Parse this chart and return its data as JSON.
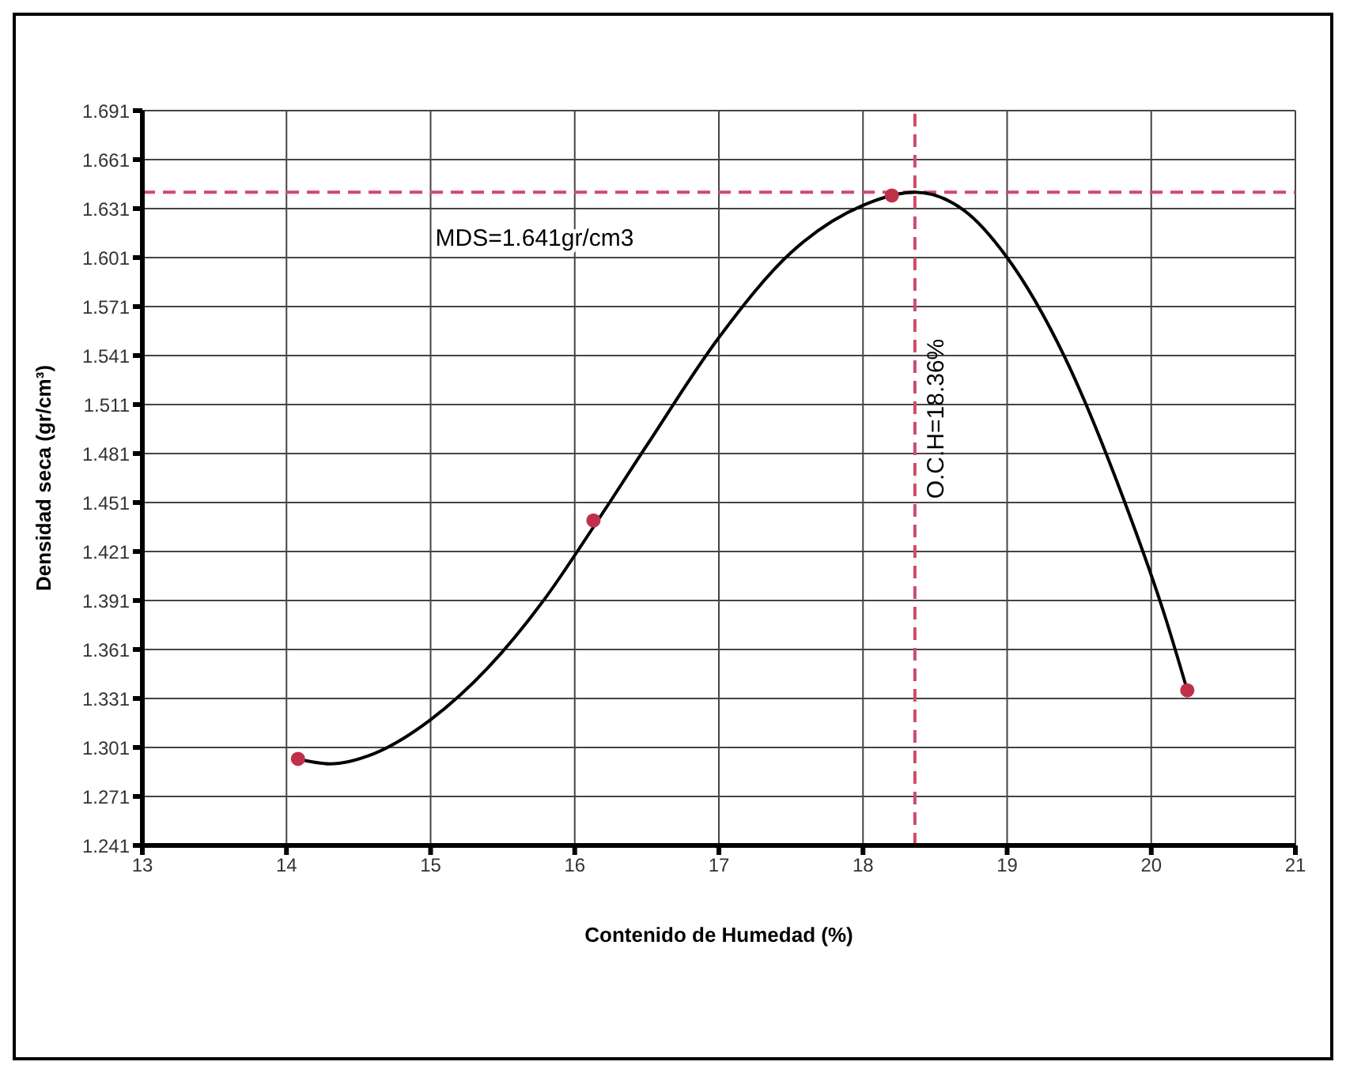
{
  "chart_data": {
    "type": "scatter",
    "xlabel": "Contenido  de Humedad (%)",
    "ylabel": "Densidad seca (gr/cm³)",
    "xlim": [
      13,
      21
    ],
    "xticks": [
      13,
      14,
      15,
      16,
      17,
      18,
      19,
      20,
      21
    ],
    "ylim": [
      1.241,
      1.691
    ],
    "yticks": [
      1.241,
      1.271,
      1.301,
      1.331,
      1.361,
      1.391,
      1.421,
      1.451,
      1.481,
      1.511,
      1.541,
      1.571,
      1.601,
      1.631,
      1.661,
      1.691
    ],
    "grid": true,
    "series": [
      {
        "type": "line",
        "color": "#000000",
        "marker": "none",
        "line_style": "solid",
        "x": [
          14.08,
          14.3,
          14.6,
          15.0,
          15.4,
          15.8,
          16.13,
          16.5,
          17.0,
          17.5,
          18.0,
          18.36,
          18.7,
          19.0,
          19.4,
          19.8,
          20.1,
          20.25
        ],
        "values": [
          1.294,
          1.291,
          1.297,
          1.318,
          1.35,
          1.393,
          1.436,
          1.486,
          1.552,
          1.604,
          1.633,
          1.641,
          1.63,
          1.601,
          1.54,
          1.455,
          1.38,
          1.336
        ]
      },
      {
        "color": "#c0304a",
        "marker": "circle",
        "x": [
          14.08,
          16.13,
          18.2,
          20.25
        ],
        "values": [
          1.294,
          1.44,
          1.639,
          1.336
        ]
      }
    ],
    "ref_lines": [
      {
        "axis": "y",
        "value": 1.641,
        "label": "MDS=1.641gr/cm3",
        "color": "#d04a6a",
        "line_style": "dashed"
      },
      {
        "axis": "x",
        "value": 18.36,
        "label": "O.C.H=18.36%",
        "color": "#d04a6a",
        "line_style": "dashed"
      }
    ]
  }
}
